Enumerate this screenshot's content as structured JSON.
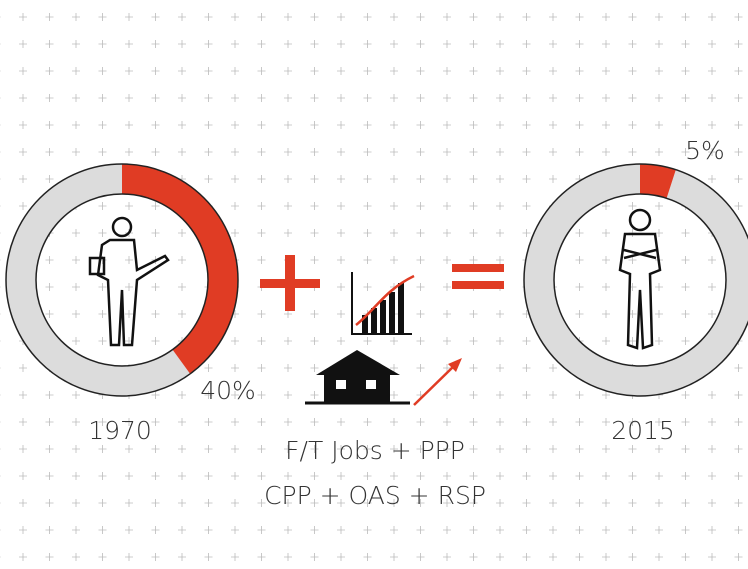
{
  "chart_data": [
    {
      "type": "pie",
      "title": "1970",
      "values": [
        40
      ],
      "value_labels": [
        "40%"
      ],
      "color": "#e03c24"
    },
    {
      "type": "pie",
      "title": "2015",
      "values": [
        5
      ],
      "value_labels": [
        "5%"
      ],
      "color": "#e03c24"
    }
  ],
  "captions": [
    "F/T  Jobs + PPP",
    "CPP + OAS + RSP"
  ]
}
